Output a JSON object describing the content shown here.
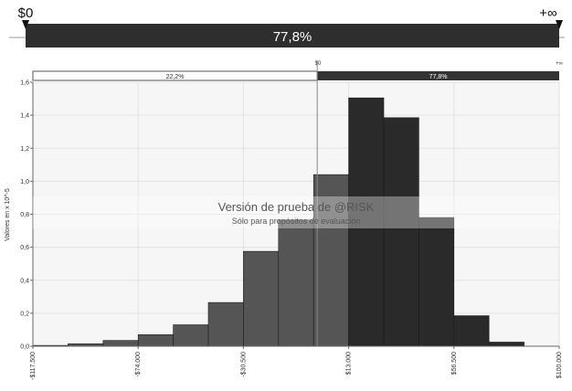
{
  "slider": {
    "left_label": "$0",
    "right_label": "+∞",
    "percent_label": "77,8%"
  },
  "band": {
    "left_percent": "22,2%",
    "right_percent": "77,8%",
    "marker_label": "$0",
    "right_end_label": "+∞"
  },
  "watermark": {
    "title": "Versión de prueba de @RISK",
    "subtitle": "Sólo para propósitos de evaluación"
  },
  "colors": {
    "dark_bar": "#2a2a2a",
    "light_bar": "#555555",
    "band_dark": "#333333",
    "plot_bg": "#f6f6f6"
  },
  "chart_data": {
    "type": "bar",
    "ylabel": "Valores en x 10^-5",
    "ylim": [
      0,
      1.6
    ],
    "yticks": [
      0,
      0.2,
      0.4,
      0.6,
      0.8,
      1.0,
      1.2,
      1.4,
      1.6
    ],
    "ytick_labels": [
      "0,0",
      "0,2",
      "0,4",
      "0,6",
      "0,8",
      "1,0",
      "1,2",
      "1,4",
      "1,6"
    ],
    "xlim": [
      -117500,
      100000
    ],
    "xticks": [
      -117500,
      -74000,
      -30500,
      13000,
      56500,
      100000
    ],
    "xtick_labels": [
      "-$117.500",
      "-$74.000",
      "-$30.500",
      "$13.000",
      "$56.500",
      "$100.000"
    ],
    "bin_width": 14500,
    "bin_starts": [
      -117500,
      -103000,
      -88500,
      -74000,
      -59500,
      -45000,
      -30500,
      -16000,
      -1500,
      13000,
      27500,
      42000,
      56500,
      71000,
      85500
    ],
    "values": [
      0.005,
      0.015,
      0.035,
      0.07,
      0.13,
      0.265,
      0.575,
      0.765,
      1.04,
      1.505,
      1.385,
      0.78,
      0.185,
      0.025,
      0
    ],
    "threshold": 0
  }
}
